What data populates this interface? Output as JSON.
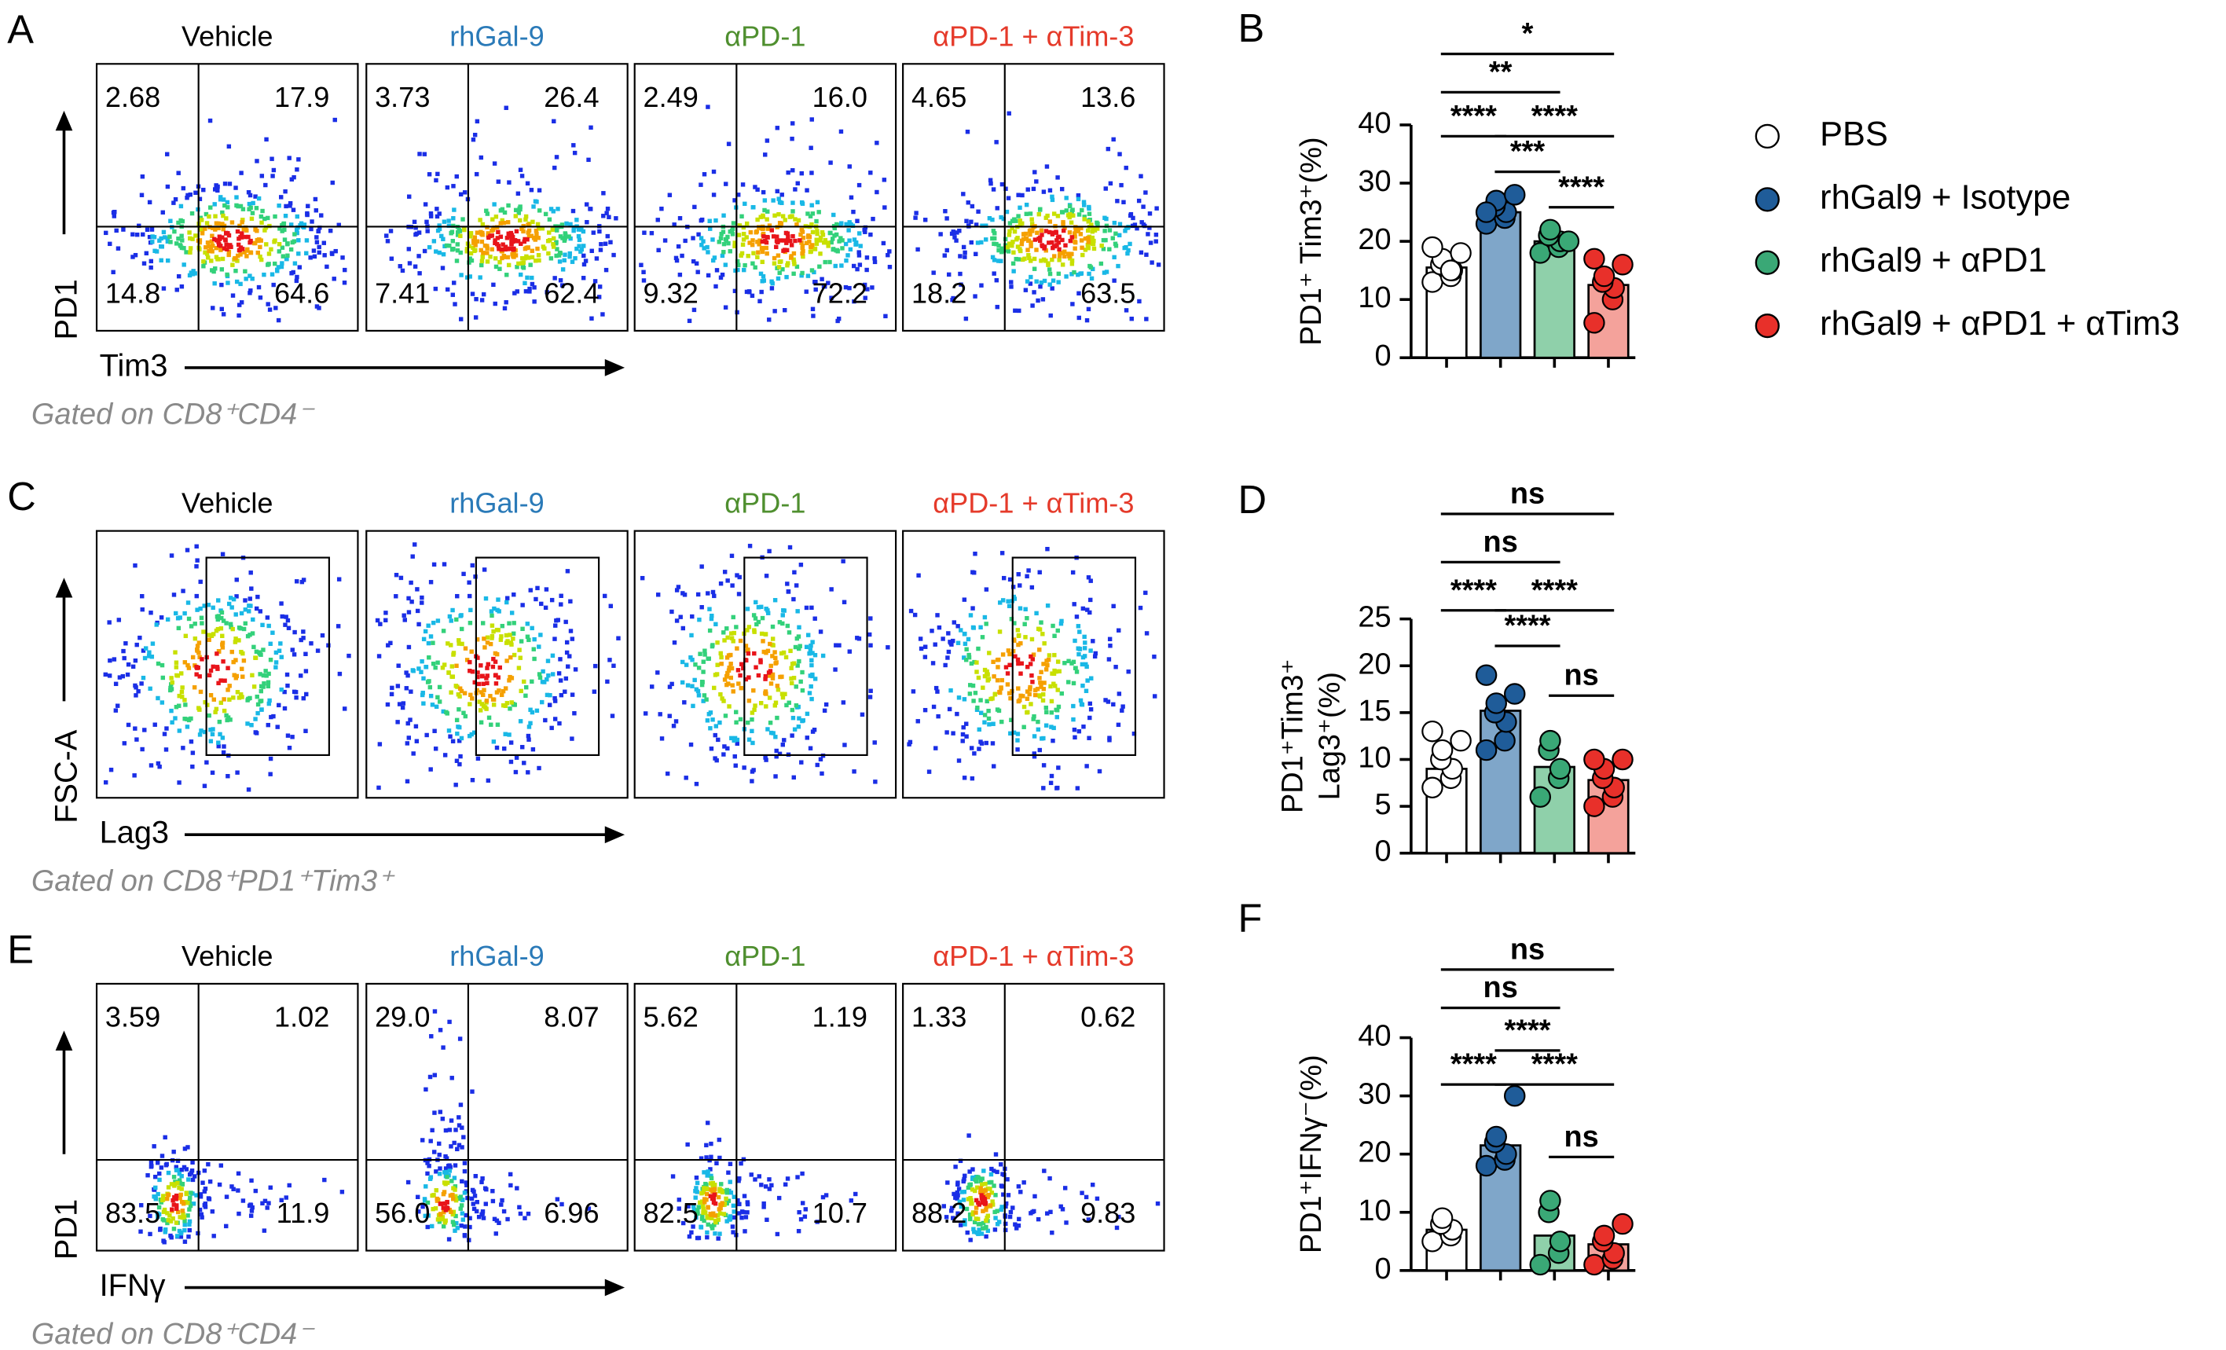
{
  "group_colors": [
    "#000000",
    "#2a7ab8",
    "#4f8f2f",
    "#e53a2a"
  ],
  "flow_panels": [
    {
      "letter": "A",
      "titles": [
        "Vehicle",
        "rhGal-9",
        "αPD-1",
        "αPD-1 + αTim-3"
      ],
      "y_axis": "PD1",
      "x_axis": "Tim3",
      "gate": "Gated on CD8⁺CD4⁻",
      "quadrants": [
        [
          "2.68",
          "17.9",
          "14.8",
          "64.6"
        ],
        [
          "3.73",
          "26.4",
          "7.41",
          "62.4"
        ],
        [
          "2.49",
          "16.0",
          "9.32",
          "72.2"
        ],
        [
          "4.65",
          "13.6",
          "18.2",
          "63.5"
        ]
      ]
    },
    {
      "letter": "C",
      "titles": [
        "Vehicle",
        "rhGal-9",
        "αPD-1",
        "αPD-1 + αTim-3"
      ],
      "y_axis": "FSC-A",
      "x_axis": "Lag3",
      "gate": "Gated on CD8⁺PD1⁺Tim3⁺"
    },
    {
      "letter": "E",
      "titles": [
        "Vehicle",
        "rhGal-9",
        "αPD-1",
        "αPD-1 + αTim-3"
      ],
      "y_axis": "PD1",
      "x_axis": "IFNγ",
      "gate": "Gated on CD8⁺CD4⁻",
      "quadrants": [
        [
          "3.59",
          "1.02",
          "83.5",
          "11.9"
        ],
        [
          "29.0",
          "8.07",
          "56.0",
          "6.96"
        ],
        [
          "5.62",
          "1.19",
          "82.5",
          "10.7"
        ],
        [
          "1.33",
          "0.62",
          "88.2",
          "9.83"
        ]
      ]
    }
  ],
  "legend": {
    "labels": [
      "PBS",
      "rhGal9 + Isotype",
      "rhGal9 + αPD1",
      "rhGal9 + αPD1 + αTim3"
    ],
    "colors": [
      "#ffffff",
      "#1f5c99",
      "#3aa876",
      "#e8302a"
    ],
    "bar_colors": [
      "#ffffff",
      "#7fa6c9",
      "#8fd0aa",
      "#f4a29b"
    ]
  },
  "chart_data": [
    {
      "type": "bar",
      "letter": "B",
      "ylabel": [
        "PD1⁺ Tim3⁺(%)"
      ],
      "values": [
        15.5,
        25,
        20,
        12.5
      ],
      "points": [
        [
          13,
          14,
          15,
          16,
          17,
          18,
          19,
          15
        ],
        [
          23,
          24,
          25,
          26,
          27,
          28,
          25
        ],
        [
          18,
          19,
          20,
          21,
          22,
          20
        ],
        [
          6,
          10,
          12,
          13,
          14,
          16,
          17
        ]
      ],
      "significance": [
        "*",
        "**",
        "****",
        "****",
        "***",
        "****"
      ],
      "ylim": [
        0,
        40
      ],
      "yticks": [
        0,
        10,
        20,
        30,
        40
      ]
    },
    {
      "type": "bar",
      "letter": "D",
      "ylabel": [
        "PD1⁺Tim3⁺",
        "Lag3⁺(%)"
      ],
      "values": [
        9,
        15.2,
        9.2,
        7.8
      ],
      "points": [
        [
          7,
          8,
          9,
          10,
          11,
          12,
          13
        ],
        [
          11,
          12,
          14,
          15,
          16,
          17,
          19
        ],
        [
          6,
          8,
          9,
          11,
          12
        ],
        [
          5,
          6,
          7,
          8,
          9,
          10,
          10
        ]
      ],
      "significance": [
        "ns",
        "ns",
        "****",
        "****",
        "****",
        "ns"
      ],
      "ylim": [
        0,
        25
      ],
      "yticks": [
        0,
        5,
        10,
        15,
        20,
        25
      ]
    },
    {
      "type": "bar",
      "letter": "F",
      "ylabel": [
        "PD1⁺IFNγ⁻(%)"
      ],
      "values": [
        7,
        21.5,
        6,
        4.5
      ],
      "points": [
        [
          5,
          6,
          7,
          8,
          9
        ],
        [
          18,
          19,
          20,
          22,
          23,
          30
        ],
        [
          1,
          3,
          5,
          10,
          12
        ],
        [
          1,
          2,
          3,
          5,
          6,
          8
        ]
      ],
      "significance": [
        "ns",
        "ns",
        "****",
        "****",
        "****",
        "ns"
      ],
      "ylim": [
        0,
        40
      ],
      "yticks": [
        0,
        10,
        20,
        30,
        40
      ]
    }
  ]
}
